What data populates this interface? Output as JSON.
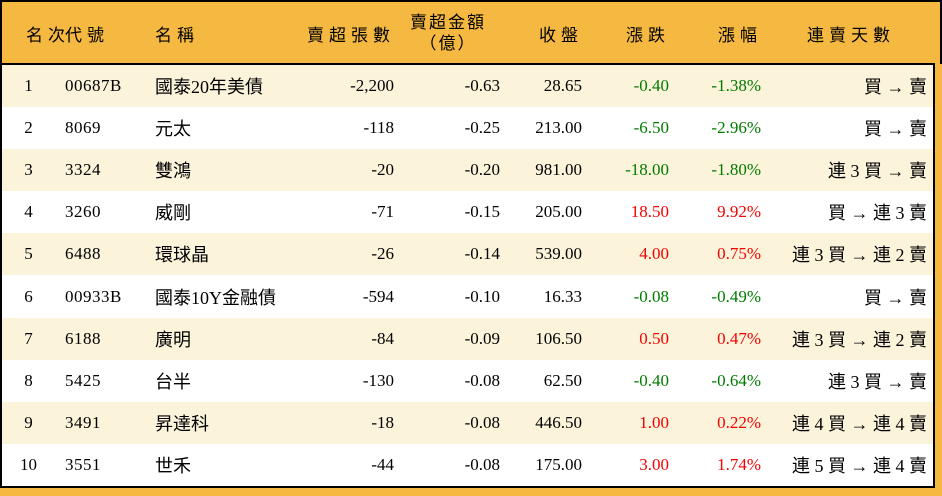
{
  "table_title_semantic": "net-sell-ranking-table",
  "colors": {
    "header_bg": "#F5B840",
    "row_bg": "#FFFFFF",
    "row_alt_bg": "#FBF3DA",
    "border": "#000000",
    "up_red": "#F40000",
    "down_green": "#007B00"
  },
  "header": {
    "rank": "名次",
    "code": "代號",
    "name": "名稱",
    "volume": "賣超張數",
    "amount_line1": "賣超金額",
    "amount_line2": "（億）",
    "close": "收盤",
    "change": "漲跌",
    "pct": "漲幅",
    "streak": "連賣天數"
  },
  "rows": [
    {
      "rank": "1",
      "code": "00687B",
      "name": "國泰20年美債",
      "volume": "-2,200",
      "amount": "-0.63",
      "close": "28.65",
      "change": "-0.40",
      "pct": "-1.38%",
      "streak": "買 → 賣",
      "trend": "down"
    },
    {
      "rank": "2",
      "code": "8069",
      "name": "元太",
      "volume": "-118",
      "amount": "-0.25",
      "close": "213.00",
      "change": "-6.50",
      "pct": "-2.96%",
      "streak": "買 → 賣",
      "trend": "down"
    },
    {
      "rank": "3",
      "code": "3324",
      "name": "雙鴻",
      "volume": "-20",
      "amount": "-0.20",
      "close": "981.00",
      "change": "-18.00",
      "pct": "-1.80%",
      "streak": "連 3 買 → 賣",
      "trend": "down"
    },
    {
      "rank": "4",
      "code": "3260",
      "name": "威剛",
      "volume": "-71",
      "amount": "-0.15",
      "close": "205.00",
      "change": "18.50",
      "pct": "9.92%",
      "streak": "買 → 連 3 賣",
      "trend": "up"
    },
    {
      "rank": "5",
      "code": "6488",
      "name": "環球晶",
      "volume": "-26",
      "amount": "-0.14",
      "close": "539.00",
      "change": "4.00",
      "pct": "0.75%",
      "streak": "連 3 買 → 連 2 賣",
      "trend": "up"
    },
    {
      "rank": "6",
      "code": "00933B",
      "name": "國泰10Y金融債",
      "volume": "-594",
      "amount": "-0.10",
      "close": "16.33",
      "change": "-0.08",
      "pct": "-0.49%",
      "streak": "買 → 賣",
      "trend": "down"
    },
    {
      "rank": "7",
      "code": "6188",
      "name": "廣明",
      "volume": "-84",
      "amount": "-0.09",
      "close": "106.50",
      "change": "0.50",
      "pct": "0.47%",
      "streak": "連 3 買 → 連 2 賣",
      "trend": "up"
    },
    {
      "rank": "8",
      "code": "5425",
      "name": "台半",
      "volume": "-130",
      "amount": "-0.08",
      "close": "62.50",
      "change": "-0.40",
      "pct": "-0.64%",
      "streak": "連 3 買 → 賣",
      "trend": "down"
    },
    {
      "rank": "9",
      "code": "3491",
      "name": "昇達科",
      "volume": "-18",
      "amount": "-0.08",
      "close": "446.50",
      "change": "1.00",
      "pct": "0.22%",
      "streak": "連 4 買 → 連 4 賣",
      "trend": "up"
    },
    {
      "rank": "10",
      "code": "3551",
      "name": "世禾",
      "volume": "-44",
      "amount": "-0.08",
      "close": "175.00",
      "change": "3.00",
      "pct": "1.74%",
      "streak": "連 5 買 → 連 4 賣",
      "trend": "up"
    }
  ]
}
